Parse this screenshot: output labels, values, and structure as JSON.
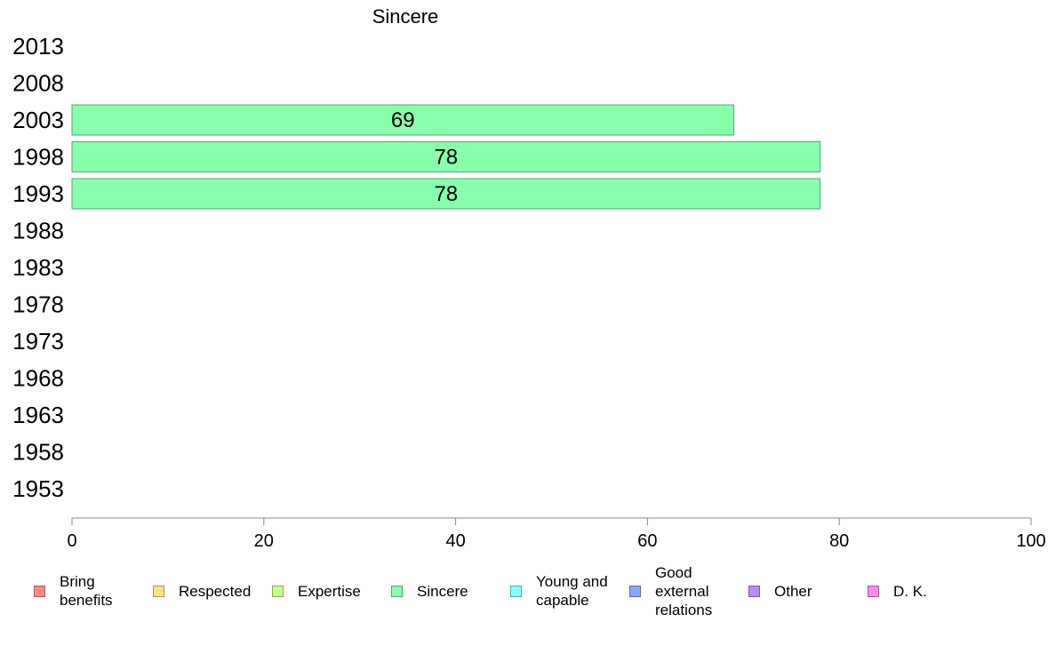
{
  "chart_data": {
    "type": "bar",
    "orientation": "horizontal",
    "title": "Sincere",
    "categories": [
      "2013",
      "2008",
      "2003",
      "1998",
      "1993",
      "1988",
      "1983",
      "1978",
      "1973",
      "1968",
      "1963",
      "1958",
      "1953"
    ],
    "series": [
      {
        "name": "Sincere",
        "color": "#88ffaa",
        "values": [
          null,
          null,
          69,
          78,
          78,
          null,
          null,
          null,
          null,
          null,
          null,
          null,
          null
        ]
      }
    ],
    "data_labels": [
      null,
      null,
      "69",
      "78",
      "78",
      null,
      null,
      null,
      null,
      null,
      null,
      null,
      null
    ],
    "xlim": [
      0,
      100
    ],
    "xticks": [
      "0",
      "20",
      "40",
      "60",
      "80",
      "100"
    ],
    "grid": false,
    "legend_position": "bottom"
  },
  "legend": [
    {
      "label": "Bring\nbenefits",
      "color": "#ff8888"
    },
    {
      "label": "Respected",
      "color": "#ffe088"
    },
    {
      "label": "Expertise",
      "color": "#ccff88"
    },
    {
      "label": "Sincere",
      "color": "#88ffaa"
    },
    {
      "label": "Young and\ncapable",
      "color": "#88ffff"
    },
    {
      "label": "Good\nexternal\nrelations",
      "color": "#88aaff"
    },
    {
      "label": "Other",
      "color": "#bb88ff"
    },
    {
      "label": "D. K.",
      "color": "#ff88ee"
    }
  ]
}
